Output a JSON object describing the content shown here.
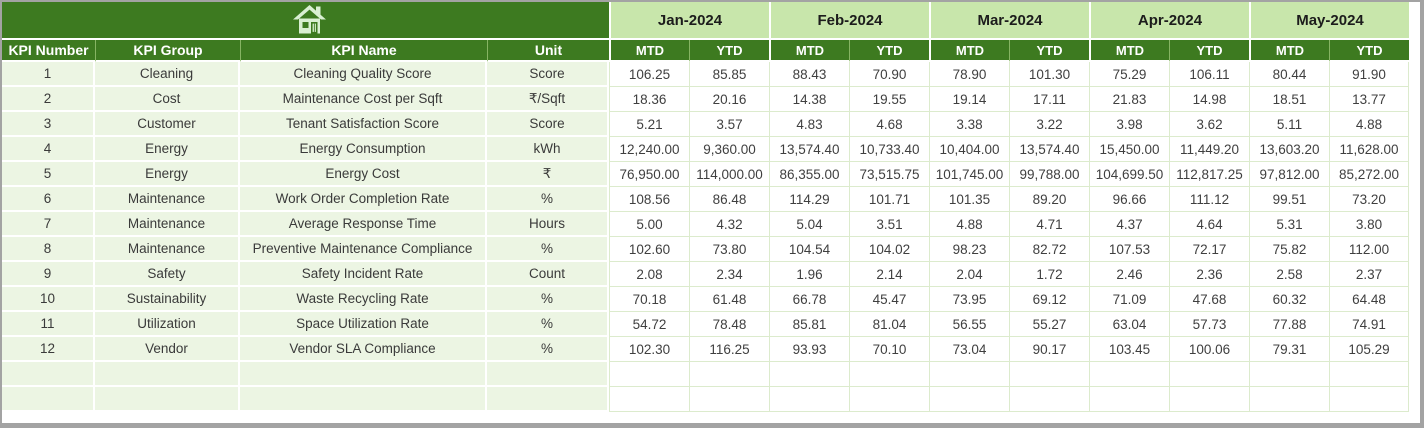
{
  "toolbar": {
    "home_icon": "house"
  },
  "colors": {
    "header_dark_green": "#3d7a20",
    "month_band_light_green": "#c8e6ab",
    "left_panel_tint": "#ecf5e3",
    "grid_line_green": "#dcebcd",
    "header_text": "#ffffff",
    "body_text": "#3a3a3a",
    "window_border_gray": "#a3a3a3",
    "home_icon_fill": "#d9efd2"
  },
  "table": {
    "left_headers": [
      "KPI Number",
      "KPI Group",
      "KPI Name",
      "Unit"
    ],
    "months": [
      "Jan-2024",
      "Feb-2024",
      "Mar-2024",
      "Apr-2024",
      "May-2024"
    ],
    "sub_headers": [
      "MTD",
      "YTD"
    ],
    "empty_rows": 2,
    "rows": [
      {
        "number": "1",
        "group": "Cleaning",
        "name": "Cleaning Quality Score",
        "unit": "Score",
        "values": [
          "106.25",
          "85.85",
          "88.43",
          "70.90",
          "78.90",
          "101.30",
          "75.29",
          "106.11",
          "80.44",
          "91.90"
        ]
      },
      {
        "number": "2",
        "group": "Cost",
        "name": "Maintenance Cost per Sqft",
        "unit": "₹/Sqft",
        "values": [
          "18.36",
          "20.16",
          "14.38",
          "19.55",
          "19.14",
          "17.11",
          "21.83",
          "14.98",
          "18.51",
          "13.77"
        ]
      },
      {
        "number": "3",
        "group": "Customer",
        "name": "Tenant Satisfaction Score",
        "unit": "Score",
        "values": [
          "5.21",
          "3.57",
          "4.83",
          "4.68",
          "3.38",
          "3.22",
          "3.98",
          "3.62",
          "5.11",
          "4.88"
        ]
      },
      {
        "number": "4",
        "group": "Energy",
        "name": "Energy Consumption",
        "unit": "kWh",
        "values": [
          "12,240.00",
          "9,360.00",
          "13,574.40",
          "10,733.40",
          "10,404.00",
          "13,574.40",
          "15,450.00",
          "11,449.20",
          "13,603.20",
          "11,628.00"
        ]
      },
      {
        "number": "5",
        "group": "Energy",
        "name": "Energy Cost",
        "unit": "₹",
        "values": [
          "76,950.00",
          "114,000.00",
          "86,355.00",
          "73,515.75",
          "101,745.00",
          "99,788.00",
          "104,699.50",
          "112,817.25",
          "97,812.00",
          "85,272.00"
        ]
      },
      {
        "number": "6",
        "group": "Maintenance",
        "name": "Work Order Completion Rate",
        "unit": "%",
        "values": [
          "108.56",
          "86.48",
          "114.29",
          "101.71",
          "101.35",
          "89.20",
          "96.66",
          "111.12",
          "99.51",
          "73.20"
        ]
      },
      {
        "number": "7",
        "group": "Maintenance",
        "name": "Average Response Time",
        "unit": "Hours",
        "values": [
          "5.00",
          "4.32",
          "5.04",
          "3.51",
          "4.88",
          "4.71",
          "4.37",
          "4.64",
          "5.31",
          "3.80"
        ]
      },
      {
        "number": "8",
        "group": "Maintenance",
        "name": "Preventive Maintenance Compliance",
        "unit": "%",
        "values": [
          "102.60",
          "73.80",
          "104.54",
          "104.02",
          "98.23",
          "82.72",
          "107.53",
          "72.17",
          "75.82",
          "112.00"
        ]
      },
      {
        "number": "9",
        "group": "Safety",
        "name": "Safety Incident Rate",
        "unit": "Count",
        "values": [
          "2.08",
          "2.34",
          "1.96",
          "2.14",
          "2.04",
          "1.72",
          "2.46",
          "2.36",
          "2.58",
          "2.37"
        ]
      },
      {
        "number": "10",
        "group": "Sustainability",
        "name": "Waste Recycling Rate",
        "unit": "%",
        "values": [
          "70.18",
          "61.48",
          "66.78",
          "45.47",
          "73.95",
          "69.12",
          "71.09",
          "47.68",
          "60.32",
          "64.48"
        ]
      },
      {
        "number": "11",
        "group": "Utilization",
        "name": "Space Utilization Rate",
        "unit": "%",
        "values": [
          "54.72",
          "78.48",
          "85.81",
          "81.04",
          "56.55",
          "55.27",
          "63.04",
          "57.73",
          "77.88",
          "74.91"
        ]
      },
      {
        "number": "12",
        "group": "Vendor",
        "name": "Vendor SLA Compliance",
        "unit": "%",
        "values": [
          "102.30",
          "116.25",
          "93.93",
          "70.10",
          "73.04",
          "90.17",
          "103.45",
          "100.06",
          "79.31",
          "105.29"
        ]
      }
    ]
  }
}
